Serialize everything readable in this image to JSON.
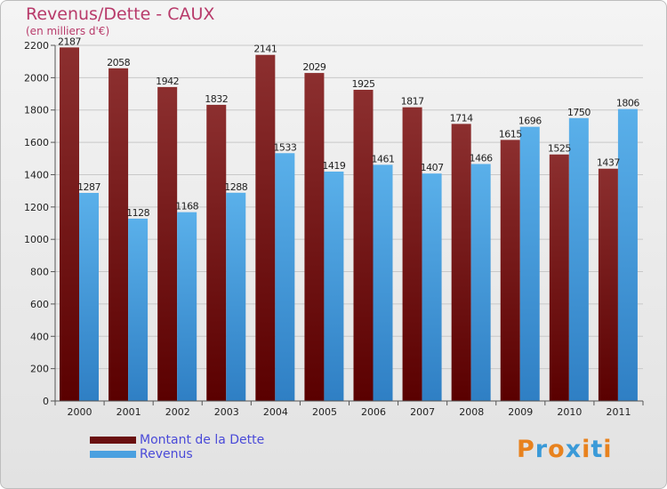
{
  "title": "Revenus/Dette - CAUX",
  "subtitle": "(en milliers d'€)",
  "colors": {
    "dette_top": "#8c2f2f",
    "dette_bottom": "#5a0000",
    "revenus_top": "#5ab0ea",
    "revenus_bottom": "#2f7fc4",
    "axis_text": "#222222",
    "grid": "#c8c8c8"
  },
  "legend": [
    {
      "label": "Montant de la Dette",
      "color": "#6a1010"
    },
    {
      "label": "Revenus",
      "color": "#4aa0e0"
    }
  ],
  "logo": {
    "text": "Proxiti",
    "letter_colors": [
      "#e8821e",
      "#3a9ad8",
      "#e8821e",
      "#3a9ad8",
      "#e8821e",
      "#3a9ad8",
      "#e8821e"
    ]
  },
  "chart_data": {
    "type": "bar",
    "categories": [
      "2000",
      "2001",
      "2002",
      "2003",
      "2004",
      "2005",
      "2006",
      "2007",
      "2008",
      "2009",
      "2010",
      "2011"
    ],
    "series": [
      {
        "name": "Montant de la Dette",
        "values": [
          2187,
          2058,
          1942,
          1832,
          2141,
          2029,
          1925,
          1817,
          1714,
          1615,
          1525,
          1437
        ]
      },
      {
        "name": "Revenus",
        "values": [
          1287,
          1128,
          1168,
          1288,
          1533,
          1419,
          1461,
          1407,
          1466,
          1696,
          1750,
          1806
        ]
      }
    ],
    "value_labels": [
      [
        "2187",
        "2058",
        "1942",
        "1832",
        "2141",
        "2029",
        "1925",
        "1817",
        "1714",
        "1615",
        "1525",
        "1437"
      ],
      [
        "1287",
        "1128",
        "1168",
        "1288",
        "1533",
        "1419",
        "1461",
        "1407",
        "1466",
        "1696",
        "1750",
        "1806"
      ]
    ],
    "yticks": [
      0,
      200,
      400,
      600,
      800,
      1000,
      1200,
      1400,
      1600,
      1800,
      2000,
      2200
    ],
    "ylim": [
      0,
      2200
    ],
    "grid": true,
    "legend_position": "bottom-left"
  }
}
